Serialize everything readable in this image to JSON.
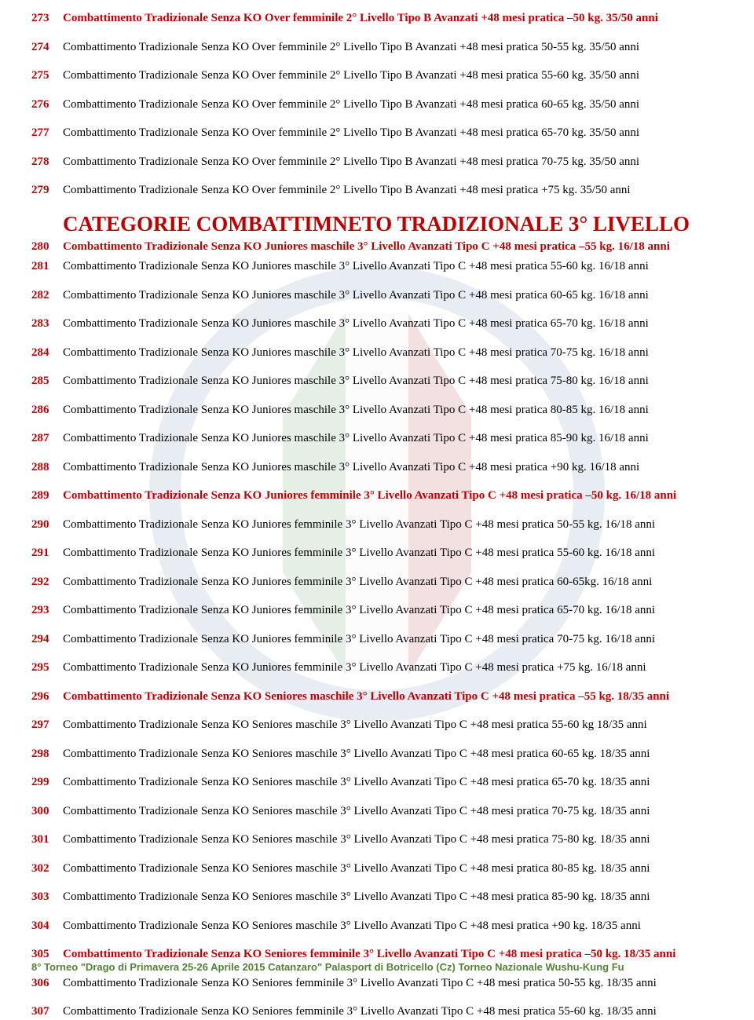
{
  "watermark_colors": {
    "green": "#5c9a5c",
    "white": "#f0f0f0",
    "red": "#b33a3a",
    "outer": "#6a8fb5"
  },
  "section_title": "CATEGORIE COMBATTIMNETO TRADIZIONALE 3° LIVELLO",
  "footer": "8° Torneo \"Drago di Primavera 25-26 Aprile 2015 Catanzaro\" Palasport di Botricello (Cz) Torneo Nazionale Wushu-Kung Fu",
  "rows": [
    {
      "n": "273",
      "t": "Combattimento Tradizionale Senza KO Over  femminile 2° Livello Tipo B Avanzati +48 mesi pratica –50 kg. 35/50 anni",
      "style": "red"
    },
    {
      "n": "274",
      "t": "Combattimento Tradizionale Senza KO Over femminile 2° Livello Tipo B Avanzati +48 mesi pratica 50-55 kg. 35/50 anni",
      "style": ""
    },
    {
      "n": "275",
      "t": "Combattimento Tradizionale Senza KO Over femminile 2° Livello Tipo B Avanzati +48 mesi pratica 55-60 kg. 35/50 anni",
      "style": ""
    },
    {
      "n": "276",
      "t": "Combattimento Tradizionale Senza KO Over femminile 2° Livello Tipo B Avanzati +48 mesi pratica 60-65 kg. 35/50 anni",
      "style": ""
    },
    {
      "n": "277",
      "t": "Combattimento Tradizionale Senza KO Over femminile 2° Livello Tipo B Avanzati +48 mesi pratica 65-70 kg. 35/50 anni",
      "style": ""
    },
    {
      "n": "278",
      "t": "Combattimento Tradizionale Senza KO Over femminile 2° Livello Tipo B Avanzati +48 mesi pratica 70-75 kg. 35/50 anni",
      "style": ""
    },
    {
      "n": "279",
      "t": "Combattimento Tradizionale Senza KO Over femminile 2° Livello Tipo B Avanzati +48 mesi pratica   +75 kg. 35/50  anni",
      "style": ""
    },
    {
      "section": true
    },
    {
      "n": "280",
      "t": "Combattimento Tradizionale Senza KO Juniores maschile 3° Livello Avanzati Tipo C +48 mesi pratica  –55 kg. 16/18 anni",
      "style": "red",
      "tight": true
    },
    {
      "n": "281",
      "t": "Combattimento Tradizionale Senza KO Juniores maschile 3° Livello Avanzati Tipo C +48 mesi pratica  55-60 kg. 16/18 anni",
      "style": ""
    },
    {
      "n": "282",
      "t": "Combattimento Tradizionale Senza KO Juniores maschile 3° Livello Avanzati Tipo C +48 mesi pratica  60-65 kg. 16/18 anni",
      "style": ""
    },
    {
      "n": "283",
      "t": "Combattimento Tradizionale Senza KO Juniores maschile 3° Livello Avanzati Tipo C +48 mesi pratica  65-70 kg. 16/18 anni",
      "style": ""
    },
    {
      "n": "284",
      "t": "Combattimento Tradizionale Senza KO Juniores maschile 3° Livello Avanzati Tipo C +48 mesi pratica  70-75 kg. 16/18 anni",
      "style": ""
    },
    {
      "n": "285",
      "t": "Combattimento Tradizionale Senza KO Juniores maschile 3° Livello Avanzati Tipo C +48 mesi pratica  75-80 kg. 16/18 anni",
      "style": ""
    },
    {
      "n": "286",
      "t": "Combattimento Tradizionale Senza KO Juniores maschile 3° Livello Avanzati Tipo C +48 mesi pratica  80-85 kg. 16/18 anni",
      "style": ""
    },
    {
      "n": "287",
      "t": "Combattimento Tradizionale Senza KO Juniores maschile 3° Livello Avanzati Tipo C +48 mesi pratica  85-90 kg. 16/18 anni",
      "style": ""
    },
    {
      "n": "288",
      "t": "Combattimento Tradizionale Senza KO Juniores maschile 3° Livello Avanzati Tipo C +48 mesi pratica     +90 kg. 16/18 anni",
      "style": ""
    },
    {
      "n": "289",
      "t": "Combattimento Tradizionale Senza KO Juniores femminile 3° Livello Avanzati Tipo C +48 mesi pratica  –50 kg. 16/18 anni",
      "style": "red"
    },
    {
      "n": "290",
      "t": "Combattimento Tradizionale Senza KO Juniores femminile 3° Livello Avanzati Tipo C +48 mesi pratica  50-55 kg. 16/18 anni",
      "style": ""
    },
    {
      "n": "291",
      "t": "Combattimento Tradizionale Senza KO Juniores femminile 3° Livello Avanzati Tipo C +48 mesi pratica  55-60 kg. 16/18 anni",
      "style": ""
    },
    {
      "n": "292",
      "t": "Combattimento Tradizionale Senza KO Juniores femminile 3° Livello Avanzati Tipo C +48 mesi pratica  60-65kg. 16/18 anni",
      "style": ""
    },
    {
      "n": "293",
      "t": "Combattimento Tradizionale Senza KO Juniores femminile 3° Livello Avanzati Tipo C +48 mesi pratica  65-70 kg. 16/18 anni",
      "style": ""
    },
    {
      "n": "294",
      "t": "Combattimento Tradizionale Senza KO Juniores femminile 3° Livello Avanzati Tipo C +48 mesi pratica  70-75 kg. 16/18 anni",
      "style": ""
    },
    {
      "n": "295",
      "t": "Combattimento Tradizionale Senza KO Juniores femminile 3° Livello Avanzati Tipo C +48 mesi pratica    +75 kg. 16/18 anni",
      "style": ""
    },
    {
      "n": "296",
      "t": "Combattimento Tradizionale Senza KO Seniores maschile 3° Livello Avanzati Tipo C +48 mesi pratica  –55 kg. 18/35 anni",
      "style": "red"
    },
    {
      "n": "297",
      "t": "Combattimento Tradizionale Senza KO Seniores maschile 3° Livello Avanzati Tipo C +48 mesi pratica  55-60 kg 18/35 anni",
      "style": ""
    },
    {
      "n": "298",
      "t": "Combattimento Tradizionale Senza KO Seniores maschile 3° Livello Avanzati Tipo C +48 mesi pratica  60-65 kg. 18/35 anni",
      "style": ""
    },
    {
      "n": "299",
      "t": "Combattimento Tradizionale Senza KO Seniores maschile 3° Livello Avanzati Tipo C +48 mesi pratica  65-70 kg. 18/35 anni",
      "style": ""
    },
    {
      "n": "300",
      "t": "Combattimento Tradizionale Senza KO Seniores maschile 3° Livello Avanzati Tipo C +48 mesi pratica  70-75 kg. 18/35 anni",
      "style": ""
    },
    {
      "n": "301",
      "t": "Combattimento Tradizionale Senza KO Seniores maschile 3° Livello Avanzati Tipo C +48 mesi pratica  75-80 kg. 18/35 anni",
      "style": ""
    },
    {
      "n": "302",
      "t": "Combattimento Tradizionale Senza KO Seniores maschile 3° Livello Avanzati Tipo C +48 mesi pratica  80-85 kg. 18/35 anni",
      "style": ""
    },
    {
      "n": "303",
      "t": "Combattimento Tradizionale Senza KO Seniores maschile 3° Livello Avanzati Tipo C +48 mesi pratica  85-90 kg. 18/35 anni",
      "style": ""
    },
    {
      "n": "304",
      "t": "Combattimento Tradizionale Senza KO Seniores maschile 3° Livello Avanzati Tipo C +48 mesi pratica     +90 kg. 18/35 anni",
      "style": ""
    },
    {
      "n": "305",
      "t": "Combattimento Tradizionale Senza KO Seniores femminile 3° Livello Avanzati Tipo C +48 mesi pratica –50 kg. 18/35 anni",
      "style": "red"
    },
    {
      "n": "306",
      "t": "Combattimento Tradizionale Senza KO Seniores femminile 3° Livello Avanzati Tipo C +48 mesi pratica  50-55 kg. 18/35 anni",
      "style": ""
    },
    {
      "n": "307",
      "t": "Combattimento Tradizionale Senza KO Seniores femminile 3° Livello Avanzati Tipo C +48 mesi pratica  55-60 kg. 18/35 anni",
      "style": ""
    }
  ]
}
